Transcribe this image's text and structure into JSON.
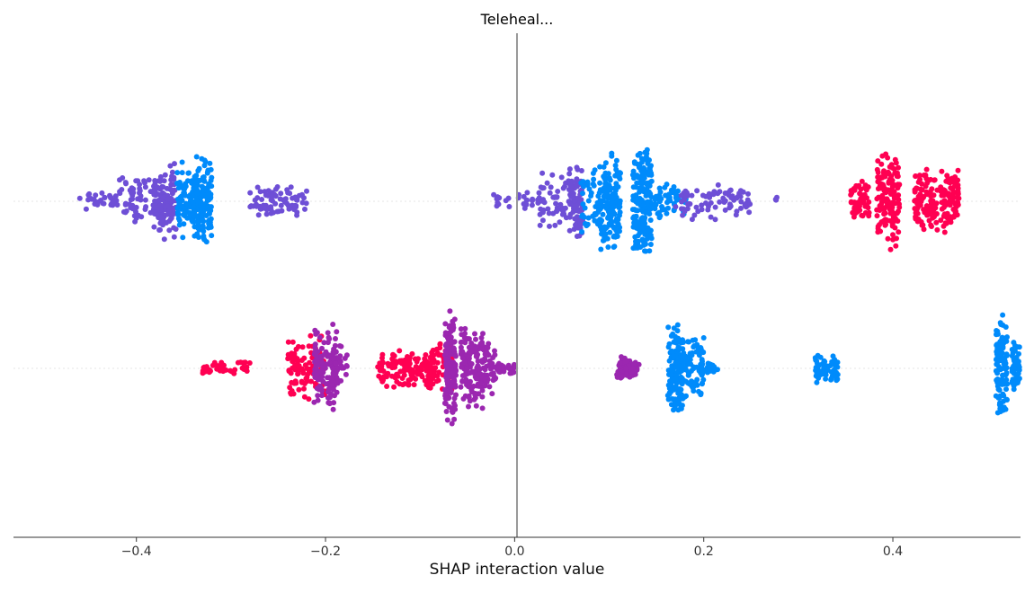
{
  "chart_data": {
    "type": "scatter",
    "title": "Teleheal...",
    "xlabel": "SHAP interaction value",
    "xlim": [
      -0.53,
      0.535
    ],
    "x_ticks": [
      -0.4,
      -0.2,
      0.0,
      0.2,
      0.4
    ],
    "x_tick_labels": [
      "−0.4",
      "−0.2",
      "0.0",
      "0.2",
      "0.4"
    ],
    "grid": false,
    "vertical_reference_line_at": 0.0,
    "colors": {
      "high": "#ff0052",
      "mid": "#9b27b0",
      "low": "#008bfb",
      "midlow": "#6e4fd6"
    },
    "rows": [
      {
        "row": 1,
        "clusters": [
          {
            "x": -0.44,
            "spread": 0.02,
            "height": 0.25,
            "n": 30,
            "color": "midlow"
          },
          {
            "x": -0.39,
            "spread": 0.028,
            "height": 0.55,
            "n": 90,
            "color": "midlow"
          },
          {
            "x": -0.37,
            "spread": 0.012,
            "height": 0.8,
            "n": 90,
            "color": "midlow"
          },
          {
            "x": -0.345,
            "spread": 0.012,
            "height": 0.85,
            "n": 90,
            "color": "low"
          },
          {
            "x": -0.33,
            "spread": 0.01,
            "height": 1.0,
            "n": 130,
            "color": "low"
          },
          {
            "x": -0.25,
            "spread": 0.03,
            "height": 0.35,
            "n": 80,
            "color": "midlow"
          },
          {
            "x": 0.0,
            "spread": 0.025,
            "height": 0.2,
            "n": 25,
            "color": "midlow"
          },
          {
            "x": 0.045,
            "spread": 0.02,
            "height": 0.6,
            "n": 60,
            "color": "midlow"
          },
          {
            "x": 0.065,
            "spread": 0.008,
            "height": 0.85,
            "n": 80,
            "color": "midlow"
          },
          {
            "x": 0.09,
            "spread": 0.02,
            "height": 0.75,
            "n": 80,
            "color": "low"
          },
          {
            "x": 0.1,
            "spread": 0.012,
            "height": 1.05,
            "n": 120,
            "color": "low"
          },
          {
            "x": 0.135,
            "spread": 0.01,
            "height": 1.25,
            "n": 170,
            "color": "low"
          },
          {
            "x": 0.165,
            "spread": 0.018,
            "height": 0.4,
            "n": 55,
            "color": "low"
          },
          {
            "x": 0.21,
            "spread": 0.04,
            "height": 0.4,
            "n": 80,
            "color": "midlow"
          },
          {
            "x": 0.275,
            "spread": 0.003,
            "height": 0.1,
            "n": 3,
            "color": "midlow"
          },
          {
            "x": 0.365,
            "spread": 0.01,
            "height": 0.45,
            "n": 50,
            "color": "high"
          },
          {
            "x": 0.395,
            "spread": 0.012,
            "height": 1.05,
            "n": 140,
            "color": "high"
          },
          {
            "x": 0.435,
            "spread": 0.012,
            "height": 0.75,
            "n": 90,
            "color": "high"
          },
          {
            "x": 0.46,
            "spread": 0.01,
            "height": 0.7,
            "n": 80,
            "color": "high"
          }
        ]
      },
      {
        "row": 2,
        "clusters": [
          {
            "x": -0.305,
            "spread": 0.025,
            "height": 0.15,
            "n": 45,
            "color": "high"
          },
          {
            "x": -0.22,
            "spread": 0.02,
            "height": 0.7,
            "n": 100,
            "color": "high"
          },
          {
            "x": -0.2,
            "spread": 0.012,
            "height": 1.0,
            "n": 120,
            "color": "mid"
          },
          {
            "x": -0.185,
            "spread": 0.008,
            "height": 0.5,
            "n": 40,
            "color": "mid"
          },
          {
            "x": -0.115,
            "spread": 0.03,
            "height": 0.4,
            "n": 120,
            "color": "high"
          },
          {
            "x": -0.08,
            "spread": 0.015,
            "height": 0.55,
            "n": 80,
            "color": "high"
          },
          {
            "x": -0.068,
            "spread": 0.006,
            "height": 1.25,
            "n": 140,
            "color": "mid"
          },
          {
            "x": -0.045,
            "spread": 0.012,
            "height": 0.95,
            "n": 120,
            "color": "mid"
          },
          {
            "x": -0.03,
            "spread": 0.01,
            "height": 0.55,
            "n": 60,
            "color": "mid"
          },
          {
            "x": -0.01,
            "spread": 0.01,
            "height": 0.15,
            "n": 30,
            "color": "mid"
          },
          {
            "x": 0.12,
            "spread": 0.012,
            "height": 0.25,
            "n": 80,
            "color": "mid"
          },
          {
            "x": 0.17,
            "spread": 0.008,
            "height": 1.0,
            "n": 120,
            "color": "low"
          },
          {
            "x": 0.185,
            "spread": 0.015,
            "height": 0.7,
            "n": 100,
            "color": "low"
          },
          {
            "x": 0.205,
            "spread": 0.01,
            "height": 0.15,
            "n": 25,
            "color": "low"
          },
          {
            "x": 0.33,
            "spread": 0.012,
            "height": 0.3,
            "n": 60,
            "color": "low"
          },
          {
            "x": 0.515,
            "spread": 0.006,
            "height": 1.1,
            "n": 110,
            "color": "low"
          },
          {
            "x": 0.53,
            "spread": 0.004,
            "height": 0.6,
            "n": 50,
            "color": "low"
          }
        ]
      }
    ]
  }
}
